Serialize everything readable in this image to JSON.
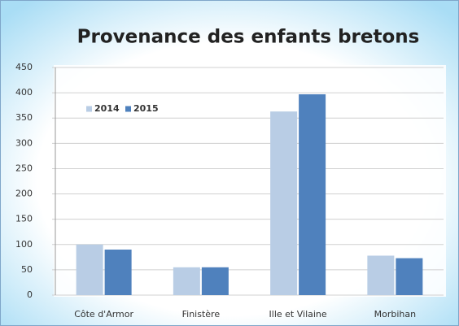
{
  "chart_data": {
    "type": "bar",
    "title": "Provenance des enfants bretons",
    "categories": [
      "Côte d'Armor",
      "Finistère",
      "Ille et Vilaine",
      "Morbihan"
    ],
    "series": [
      {
        "name": "2014",
        "color": "#b9cde5",
        "values": [
          100,
          55,
          363,
          78
        ]
      },
      {
        "name": "2015",
        "color": "#4f81bd",
        "values": [
          90,
          55,
          397,
          73
        ]
      }
    ],
    "ylim": [
      0,
      450
    ],
    "yticks": [
      0,
      50,
      100,
      150,
      200,
      250,
      300,
      350,
      400,
      450
    ],
    "grid": true,
    "legend": "top-left"
  }
}
